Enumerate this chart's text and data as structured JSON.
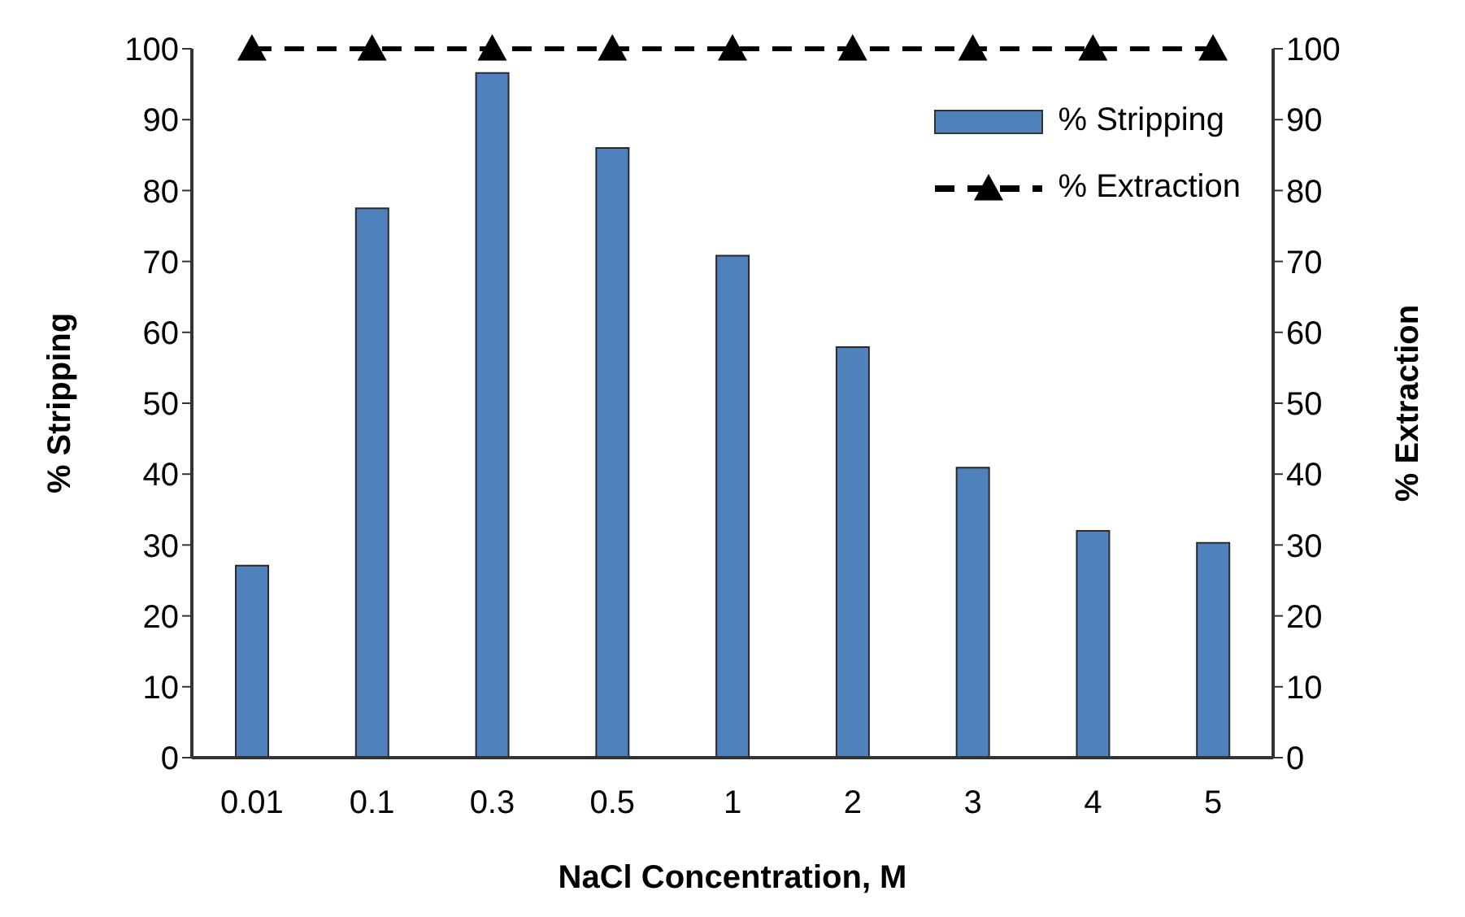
{
  "chart_data": {
    "type": "bar",
    "xlabel": "NaCl Concentration, M",
    "ylabel": "% Stripping",
    "y2label": "% Extraction",
    "categories": [
      "0.01",
      "0.1",
      "0.3",
      "0.5",
      "1",
      "2",
      "3",
      "4",
      "5"
    ],
    "series": [
      {
        "name": "% Stripping",
        "color": "#4f81bd",
        "values": [
          27.1,
          77.5,
          96.6,
          86.0,
          70.8,
          57.9,
          40.9,
          32.0,
          30.3
        ]
      },
      {
        "name": "% Extraction",
        "type": "line",
        "axis": "y2",
        "color": "#000000",
        "marker": "triangle",
        "line_style": "dashed",
        "values": [
          100,
          100,
          100,
          100,
          100,
          100,
          100,
          100,
          100
        ]
      }
    ],
    "ylim": [
      0,
      100
    ],
    "yticks": [
      0,
      10,
      20,
      30,
      40,
      50,
      60,
      70,
      80,
      90,
      100
    ],
    "y2lim": [
      0,
      100
    ],
    "y2ticks": [
      0,
      10,
      20,
      30,
      40,
      50,
      60,
      70,
      80,
      90,
      100
    ],
    "grid": false,
    "legend": "top right"
  }
}
